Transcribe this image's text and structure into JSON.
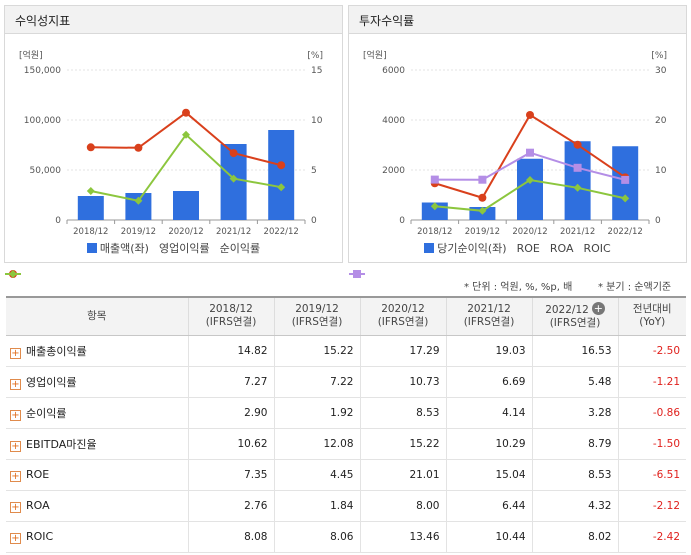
{
  "left_panel": {
    "title": "수익성지표"
  },
  "right_panel": {
    "title": "투자수익률"
  },
  "chart_data": [
    {
      "type": "bar+line",
      "title": "수익성지표",
      "y_left_unit": "[억원]",
      "y_right_unit": "[%]",
      "y_left_ticks": [
        "0",
        "50,000",
        "100,000",
        "150,000"
      ],
      "y_right_ticks": [
        "0",
        "5",
        "10",
        "15"
      ],
      "y_left_range": [
        0,
        150000
      ],
      "y_right_range": [
        0,
        15
      ],
      "categories": [
        "2018/12",
        "2019/12",
        "2020/12",
        "2021/12",
        "2022/12"
      ],
      "bar_series": {
        "name": "매출액(좌)",
        "values": [
          24000,
          27000,
          29000,
          76000,
          90000
        ],
        "color": "#2f6fde"
      },
      "line_series": [
        {
          "name": "영업이익률",
          "values": [
            7.27,
            7.22,
            10.73,
            6.69,
            5.48
          ],
          "color": "#d9401c"
        },
        {
          "name": "순이익률",
          "values": [
            2.9,
            1.92,
            8.53,
            4.14,
            3.28
          ],
          "color": "#8cc63e"
        }
      ]
    },
    {
      "type": "bar+line",
      "title": "투자수익률",
      "y_left_unit": "[억원]",
      "y_right_unit": "[%]",
      "y_left_ticks": [
        "0",
        "2000",
        "4000",
        "6000"
      ],
      "y_right_ticks": [
        "0",
        "10",
        "20",
        "30"
      ],
      "y_left_range": [
        0,
        6000
      ],
      "y_right_range": [
        0,
        30
      ],
      "categories": [
        "2018/12",
        "2019/12",
        "2020/12",
        "2021/12",
        "2022/12"
      ],
      "bar_series": {
        "name": "당기순이익(좌)",
        "values": [
          700,
          520,
          2450,
          3150,
          2950
        ],
        "color": "#2f6fde"
      },
      "line_series": [
        {
          "name": "ROE",
          "values": [
            7.35,
            4.45,
            21.01,
            15.04,
            8.53
          ],
          "color": "#d9401c",
          "marker": "circle"
        },
        {
          "name": "ROA",
          "values": [
            2.76,
            1.84,
            8.0,
            6.44,
            4.32
          ],
          "color": "#8cc63e",
          "marker": "diamond"
        },
        {
          "name": "ROIC",
          "values": [
            8.08,
            8.06,
            13.46,
            10.44,
            8.02
          ],
          "color": "#b48ee6",
          "marker": "square"
        }
      ]
    },
    {
      "type": "table",
      "columns": [
        "항목",
        "2018/12\n(IFRS연결)",
        "2019/12\n(IFRS연결)",
        "2020/12\n(IFRS연결)",
        "2021/12\n(IFRS연결)",
        "2022/12\n(IFRS연결)",
        "전년대비\n(YoY)"
      ],
      "rows": [
        {
          "label": "매출총이익률",
          "values": [
            "14.82",
            "15.22",
            "17.29",
            "19.03",
            "16.53"
          ],
          "yoy": "-2.50"
        },
        {
          "label": "영업이익률",
          "values": [
            "7.27",
            "7.22",
            "10.73",
            "6.69",
            "5.48"
          ],
          "yoy": "-1.21"
        },
        {
          "label": "순이익률",
          "values": [
            "2.90",
            "1.92",
            "8.53",
            "4.14",
            "3.28"
          ],
          "yoy": "-0.86"
        },
        {
          "label": "EBITDA마진율",
          "values": [
            "10.62",
            "12.08",
            "15.22",
            "10.29",
            "8.79"
          ],
          "yoy": "-1.50"
        },
        {
          "label": "ROE",
          "values": [
            "7.35",
            "4.45",
            "21.01",
            "15.04",
            "8.53"
          ],
          "yoy": "-6.51"
        },
        {
          "label": "ROA",
          "values": [
            "2.76",
            "1.84",
            "8.00",
            "6.44",
            "4.32"
          ],
          "yoy": "-2.12"
        },
        {
          "label": "ROIC",
          "values": [
            "8.08",
            "8.06",
            "13.46",
            "10.44",
            "8.02"
          ],
          "yoy": "-2.42"
        }
      ]
    }
  ],
  "notes": {
    "unit_note": "* 단위 : 억원, %, %p, 배",
    "quarter_note": "* 분기 : 순액기준"
  },
  "table": {
    "header_item": "항목",
    "periods": [
      {
        "year": "2018/12",
        "basis": "(IFRS연결)"
      },
      {
        "year": "2019/12",
        "basis": "(IFRS연결)"
      },
      {
        "year": "2020/12",
        "basis": "(IFRS연결)"
      },
      {
        "year": "2021/12",
        "basis": "(IFRS연결)"
      },
      {
        "year": "2022/12",
        "basis": "(IFRS연결)"
      }
    ],
    "yoy_header": {
      "line1": "전년대비",
      "line2": "(YoY)"
    },
    "plus_symbol": "+"
  }
}
